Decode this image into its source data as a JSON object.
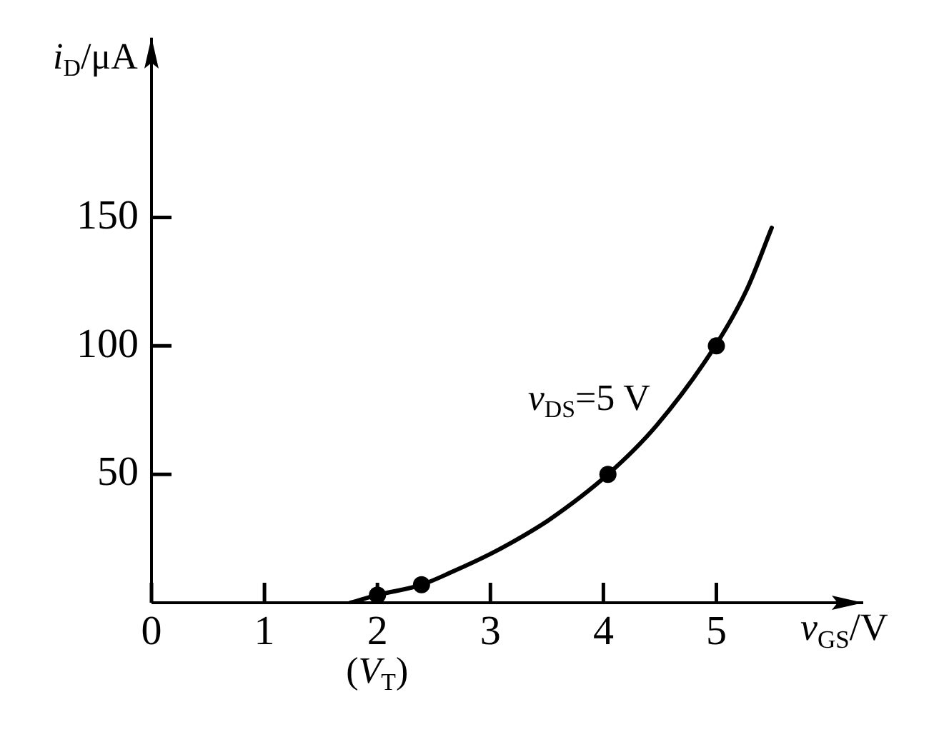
{
  "chart_data": {
    "type": "line",
    "xlabel": "v$_{GS}$/V",
    "ylabel": "i$_{D}$/μA",
    "annotations": [
      {
        "text": "(V$_{T}$)",
        "x": 2,
        "y": 0
      }
    ],
    "xlim": [
      0,
      6.3
    ],
    "ylim": [
      0,
      220
    ],
    "xticks": [
      0,
      1,
      2,
      3,
      4,
      5
    ],
    "yticks": [
      50,
      100,
      150
    ],
    "grid": false,
    "legend": false,
    "series": [
      {
        "name": "v$_{DS}$=5 V",
        "type": "line",
        "color": "#000000",
        "marker": "none",
        "x": [
          1.76,
          2,
          2.39,
          2.66,
          3,
          3.25,
          3.51,
          4.04,
          4.47,
          4.99,
          5.27,
          5.49
        ],
        "values": [
          0,
          3,
          7,
          12,
          19,
          25,
          32,
          50,
          69,
          100,
          122,
          146
        ]
      },
      {
        "type": "scatter",
        "color": "#000000",
        "marker": "circle",
        "x": [
          2,
          2.39,
          4.04,
          5
        ],
        "values": [
          3,
          7,
          50,
          100
        ]
      }
    ]
  }
}
